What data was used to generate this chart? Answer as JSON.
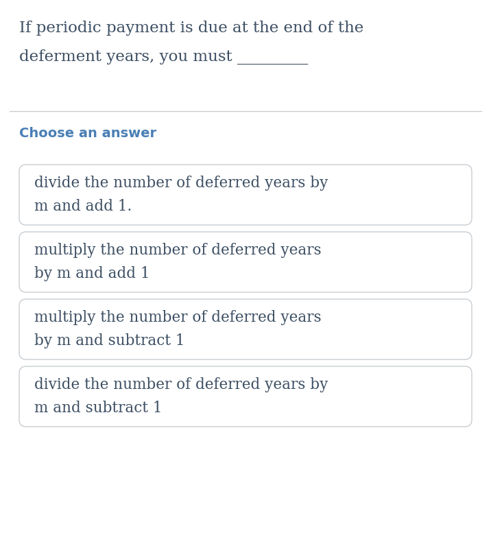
{
  "background_color": "#ffffff",
  "question_text_line1": "If periodic payment is due at the end of the",
  "question_text_line2": "deferment years, you must _________",
  "choose_label": "Choose an answer",
  "choose_color": "#4a7fb5",
  "divider_color": "#cccccc",
  "options": [
    [
      "divide the number of deferred years by",
      "m and add 1."
    ],
    [
      "multiply the number of deferred years",
      "by m and add 1"
    ],
    [
      "multiply the number of deferred years",
      "by m and subtract 1"
    ],
    [
      "divide the number of deferred years by",
      "m and subtract 1"
    ]
  ],
  "option_text_color": "#3d4f63",
  "option_bg_color": "#ffffff",
  "option_border_color": "#c8cdd2",
  "question_text_color": "#3d4f63",
  "question_fontsize": 16.5,
  "choose_fontsize": 14,
  "option_fontsize": 15.5
}
